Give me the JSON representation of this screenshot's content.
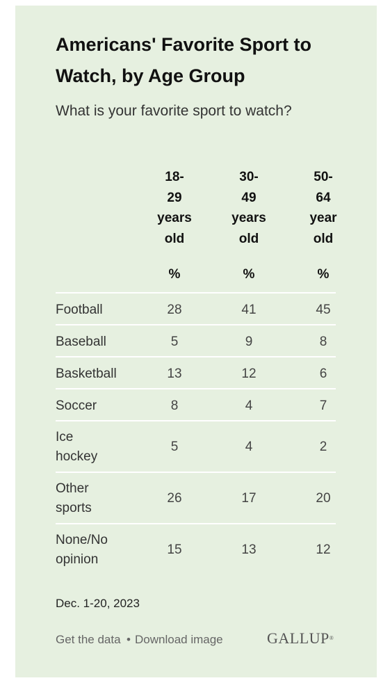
{
  "chart_data": {
    "type": "table",
    "title": "Americans' Favorite Sport to Watch, by Age Group",
    "subtitle": "What is your favorite sport to watch?",
    "columns": [
      "18-\n29\nyears\nold",
      "30-\n49\nyears\nold",
      "50-\n64\nyear\nold"
    ],
    "unit": "%",
    "rows": [
      {
        "label": "Football",
        "values": [
          28,
          41,
          45
        ]
      },
      {
        "label": "Baseball",
        "values": [
          5,
          9,
          8
        ]
      },
      {
        "label": "Basketball",
        "values": [
          13,
          12,
          6
        ]
      },
      {
        "label": "Soccer",
        "values": [
          8,
          4,
          7
        ]
      },
      {
        "label": "Ice\nhockey",
        "values": [
          5,
          4,
          2
        ]
      },
      {
        "label": "Other\nsports",
        "values": [
          26,
          17,
          20
        ]
      },
      {
        "label": "None/No\nopinion",
        "values": [
          15,
          13,
          12
        ]
      }
    ]
  },
  "footer": {
    "date": "Dec. 1-20, 2023",
    "get_data": "Get the data",
    "separator": "•",
    "download": "Download image",
    "logo": "GALLUP",
    "logo_mark": "®"
  },
  "colors": {
    "background": "#e6f0e0",
    "rule": "#ffffff"
  }
}
